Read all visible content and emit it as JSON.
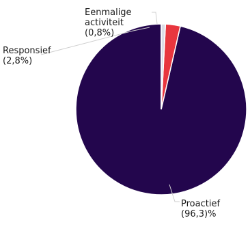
{
  "chart_data": {
    "type": "pie",
    "start_angle_deg": 0,
    "direction": "counterclockwise",
    "slices": [
      {
        "name": "Proactief",
        "value": 96.3,
        "color": "#23064d",
        "label_lines": [
          "Proactief",
          "(96,3)%"
        ]
      },
      {
        "name": "Responsief",
        "value": 2.8,
        "color": "#e8363e",
        "label_lines": [
          "Responsief",
          "(2,8%)"
        ]
      },
      {
        "name": "Eenmalige activiteit",
        "value": 0.8,
        "color": "#dcdce6",
        "label_lines": [
          "Eenmalige",
          "activiteit",
          "(0,8%)"
        ]
      }
    ]
  }
}
